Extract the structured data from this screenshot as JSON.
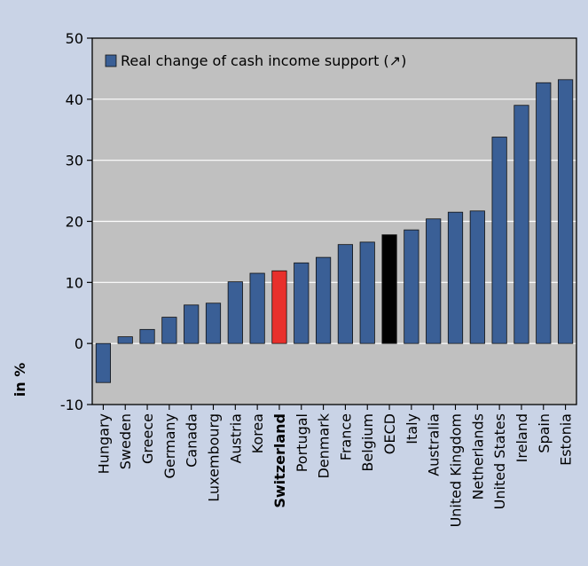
{
  "chart_data": {
    "type": "bar",
    "title": "",
    "xlabel": "",
    "ylabel": "in %",
    "ylim": [
      -10,
      50
    ],
    "yticks": [
      -10,
      0,
      10,
      20,
      30,
      40,
      50
    ],
    "grid": true,
    "legend_position": "top-left",
    "legend_label": "Real change of cash income support (↗)",
    "series": [
      {
        "name": "Real change of cash income support (↗)",
        "color": "#3a5f96",
        "categories": [
          "Hungary",
          "Sweden",
          "Greece",
          "Germany",
          "Canada",
          "Luxembourg",
          "Austria",
          "Korea",
          "Switzerland",
          "Portugal",
          "Denmark",
          "France",
          "Belgium",
          "OECD",
          "Italy",
          "Australia",
          "United Kingdom",
          "Netherlands",
          "United States",
          "Ireland",
          "Spain",
          "Estonia"
        ],
        "values": [
          -6.4,
          1.1,
          2.3,
          4.3,
          6.3,
          6.6,
          10.1,
          11.5,
          11.9,
          13.2,
          14.1,
          16.2,
          16.6,
          17.8,
          18.6,
          20.4,
          21.5,
          21.7,
          33.8,
          39.0,
          42.7,
          43.2
        ]
      }
    ],
    "highlights": {
      "Switzerland": "#e8302c",
      "OECD": "#000000"
    },
    "bold_categories": [
      "Switzerland"
    ]
  },
  "colors": {
    "page_background": "#c9d3e6",
    "plot_background": "#c0c0c0",
    "gridline": "#ffffff",
    "bar_default": "#3a5f96"
  }
}
